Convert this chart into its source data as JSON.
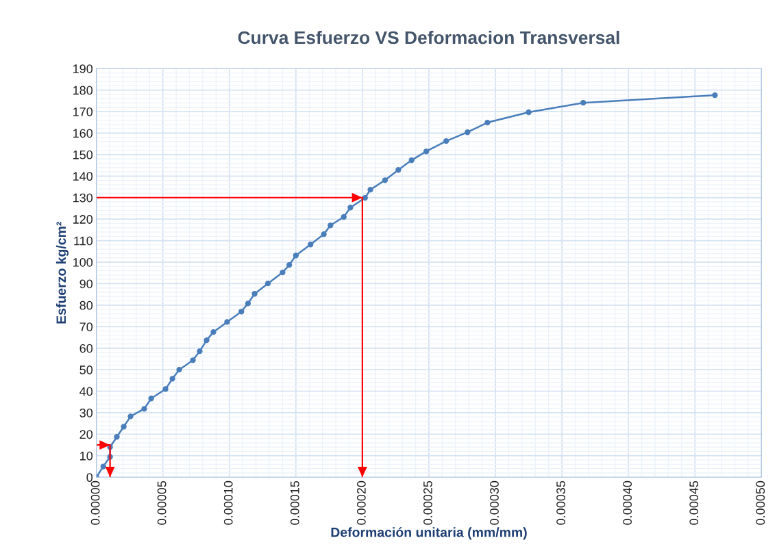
{
  "chart_data": {
    "type": "line",
    "title": "Curva Esfuerzo VS Deformacion Transversal",
    "xlabel": "Deformación unitaria (mm/mm)",
    "ylabel": "Esfuerzo kg/cm²",
    "xlim": [
      0,
      0.0005
    ],
    "ylim": [
      0,
      190
    ],
    "xticks": [
      {
        "value": 0,
        "label": "0.00000"
      },
      {
        "value": 5e-05,
        "label": "0.00005"
      },
      {
        "value": 0.0001,
        "label": "0.00010"
      },
      {
        "value": 0.00015,
        "label": "0.00015"
      },
      {
        "value": 0.0002,
        "label": "0.00020"
      },
      {
        "value": 0.00025,
        "label": "0.00025"
      },
      {
        "value": 0.0003,
        "label": "0.00030"
      },
      {
        "value": 0.00035,
        "label": "0.00035"
      },
      {
        "value": 0.0004,
        "label": "0.00040"
      },
      {
        "value": 0.00045,
        "label": "0.00045"
      },
      {
        "value": 0.0005,
        "label": "0.00050"
      }
    ],
    "yticks": [
      0,
      10,
      20,
      30,
      40,
      50,
      60,
      70,
      80,
      90,
      100,
      110,
      120,
      130,
      140,
      150,
      160,
      170,
      180,
      190
    ],
    "grid": true,
    "legend": false,
    "line_style": "solid",
    "series": [
      {
        "color": "#4a7ebb",
        "marker": "circle",
        "x": [
          0,
          5.2e-06,
          1.03e-05,
          1.03e-05,
          1.54e-05,
          2.06e-05,
          2.57e-05,
          3.6e-05,
          4.12e-05,
          5.2e-05,
          5.72e-05,
          6.23e-05,
          7.26e-05,
          7.77e-05,
          8.29e-05,
          8.8e-05,
          9.83e-05,
          0.000109,
          0.000114,
          0.000119,
          0.000129,
          0.00014,
          0.000145,
          0.00015,
          0.000161,
          0.000171,
          0.000176,
          0.000186,
          0.000191,
          0.000202,
          0.000206,
          0.000217,
          0.000227,
          0.000237,
          0.000248,
          0.000263,
          0.000279,
          0.000294,
          0.000325,
          0.000366,
          0.000465
        ],
        "values": [
          0,
          5,
          9.5,
          14,
          18.8,
          23.5,
          28.3,
          31.8,
          36.6,
          41,
          45.8,
          50,
          54.4,
          58.6,
          63.7,
          67.5,
          72.2,
          77,
          80.8,
          85.3,
          90.1,
          95.2,
          98.7,
          103.1,
          108.2,
          113,
          117.1,
          121,
          125.4,
          129.9,
          133.7,
          138.1,
          142.9,
          147.4,
          151.5,
          156.3,
          160.4,
          164.9,
          169.7,
          174.1,
          177.6
        ]
      },
      {
        "color": "#ff0000",
        "marker": "none",
        "x": [
          0,
          0.0002,
          0.0002
        ],
        "values": [
          130,
          130,
          0
        ]
      },
      {
        "color": "#ff0000",
        "marker": "none",
        "x": [
          1e-06,
          1.03e-05,
          1.03e-05
        ],
        "values": [
          15,
          15,
          0
        ]
      }
    ]
  }
}
